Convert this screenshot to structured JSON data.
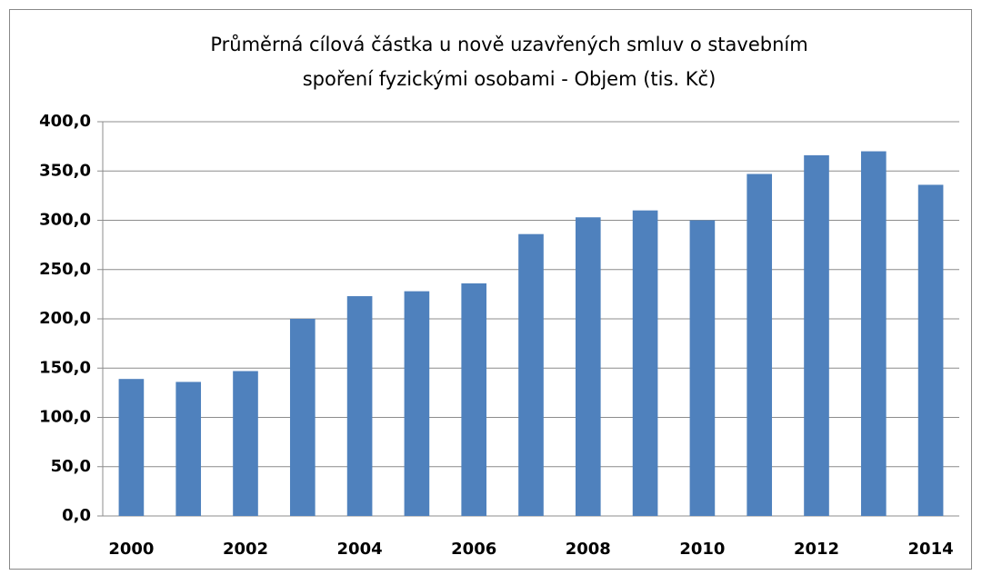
{
  "chart_data": {
    "type": "bar",
    "title": [
      "Průměrná cílová částka u nově uzavřených smluv o stavebním",
      "spoření fyzickými osobami - Objem (tis. Kč)"
    ],
    "categories": [
      "2000",
      null,
      "2002",
      null,
      "2004",
      null,
      "2006",
      null,
      "2008",
      null,
      "2010",
      null,
      "2012",
      null,
      "2014"
    ],
    "values": [
      139,
      136,
      147,
      200,
      223,
      228,
      236,
      286,
      303,
      310,
      300,
      347,
      366,
      370,
      336
    ],
    "color": "#4f81bd",
    "ylim": [
      0,
      400
    ],
    "yticks": [
      {
        "value": 0,
        "label": "0,0"
      },
      {
        "value": 50,
        "label": "50,0"
      },
      {
        "value": 100,
        "label": "100,0"
      },
      {
        "value": 150,
        "label": "150,0"
      },
      {
        "value": 200,
        "label": "200,0"
      },
      {
        "value": 250,
        "label": "250,0"
      },
      {
        "value": 300,
        "label": "300,0"
      },
      {
        "value": 350,
        "label": "350,0"
      },
      {
        "value": 400,
        "label": "400,0"
      }
    ],
    "grid": true
  }
}
